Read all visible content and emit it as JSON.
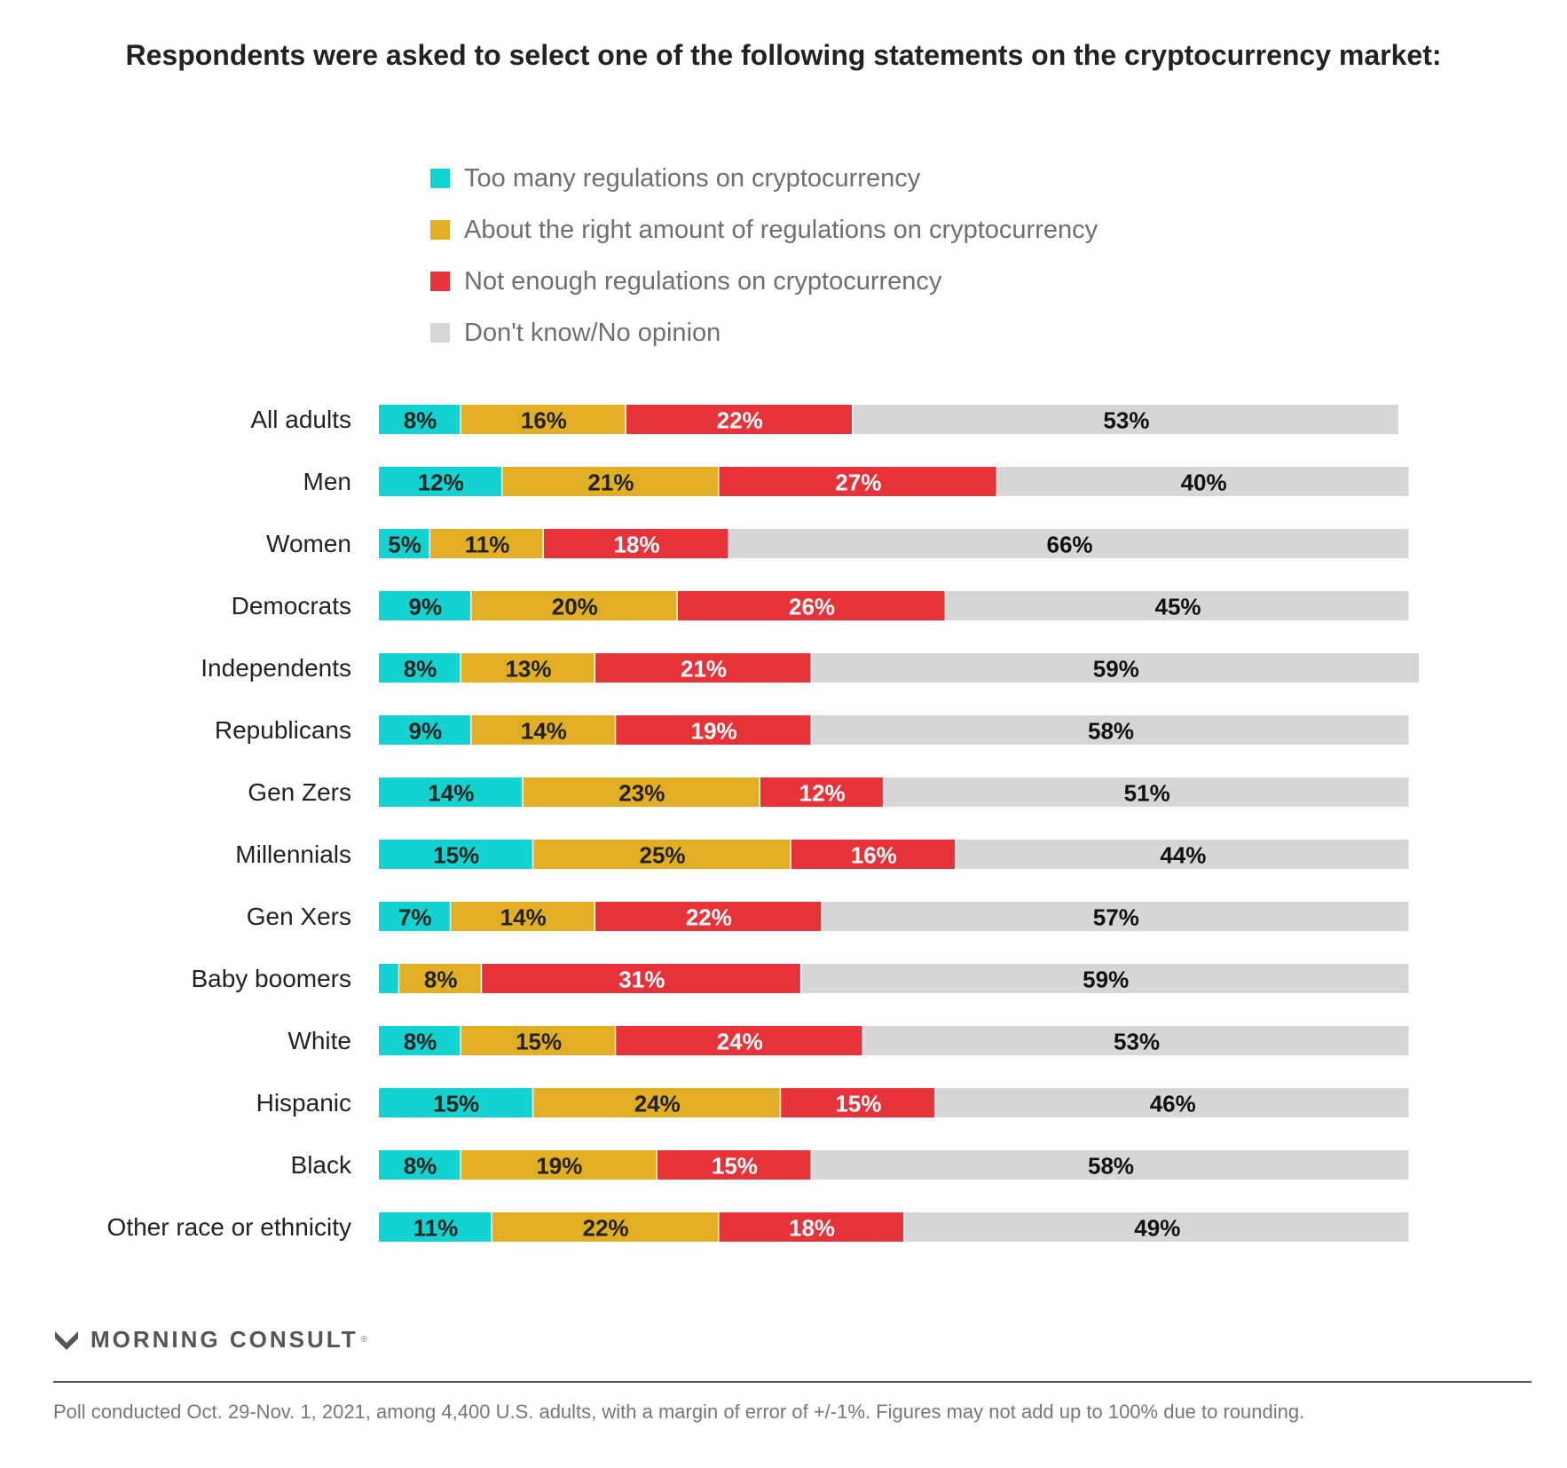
{
  "chart_data": {
    "type": "bar",
    "orientation": "horizontal",
    "stacked": true,
    "title": "Respondents were asked to select one of the following statements on the cryptocurrency market:",
    "legend_position": "top",
    "grid": false,
    "xlim": [
      0,
      100
    ],
    "categories": [
      "All adults",
      "Men",
      "Women",
      "Democrats",
      "Independents",
      "Republicans",
      "Gen Zers",
      "Millennials",
      "Gen Xers",
      "Baby boomers",
      "White",
      "Hispanic",
      "Black",
      "Other race or ethnicity"
    ],
    "series": [
      {
        "name": "Too many regulations on cryptocurrency",
        "color": "#12d3cf",
        "label_color": "#222222",
        "values": [
          8,
          12,
          5,
          9,
          8,
          9,
          14,
          15,
          7,
          2,
          8,
          15,
          8,
          11
        ],
        "labels": [
          "8%",
          "12%",
          "5%",
          "9%",
          "8%",
          "9%",
          "14%",
          "15%",
          "7%",
          "",
          "8%",
          "15%",
          "8%",
          "11%"
        ]
      },
      {
        "name": "About the right amount of regulations on cryptocurrency",
        "color": "#e2af24",
        "label_color": "#222222",
        "values": [
          16,
          21,
          11,
          20,
          13,
          14,
          23,
          25,
          14,
          8,
          15,
          24,
          19,
          22
        ],
        "labels": [
          "16%",
          "21%",
          "11%",
          "20%",
          "13%",
          "14%",
          "23%",
          "25%",
          "14%",
          "8%",
          "15%",
          "24%",
          "19%",
          "22%"
        ]
      },
      {
        "name": "Not enough regulations on cryptocurrency",
        "color": "#e8323a",
        "label_color": "#ffffff",
        "values": [
          22,
          27,
          18,
          26,
          21,
          19,
          12,
          16,
          22,
          31,
          24,
          15,
          15,
          18
        ],
        "labels": [
          "22%",
          "27%",
          "18%",
          "26%",
          "21%",
          "19%",
          "12%",
          "16%",
          "22%",
          "31%",
          "24%",
          "15%",
          "15%",
          "18%"
        ]
      },
      {
        "name": "Don't know/No opinion",
        "color": "#d6d6d6",
        "label_color": "#111111",
        "values": [
          53,
          40,
          66,
          45,
          59,
          58,
          51,
          44,
          57,
          59,
          53,
          46,
          58,
          49
        ],
        "labels": [
          "53%",
          "40%",
          "66%",
          "45%",
          "59%",
          "58%",
          "51%",
          "44%",
          "57%",
          "59%",
          "53%",
          "46%",
          "58%",
          "49%"
        ]
      }
    ]
  },
  "brand": {
    "name": "MORNING CONSULT",
    "mark": "®",
    "color": "#555555"
  },
  "footnote": "Poll conducted Oct. 29-Nov. 1, 2021, among 4,400 U.S. adults, with a margin of error of +/-1%. Figures may not add up to 100% due to rounding."
}
